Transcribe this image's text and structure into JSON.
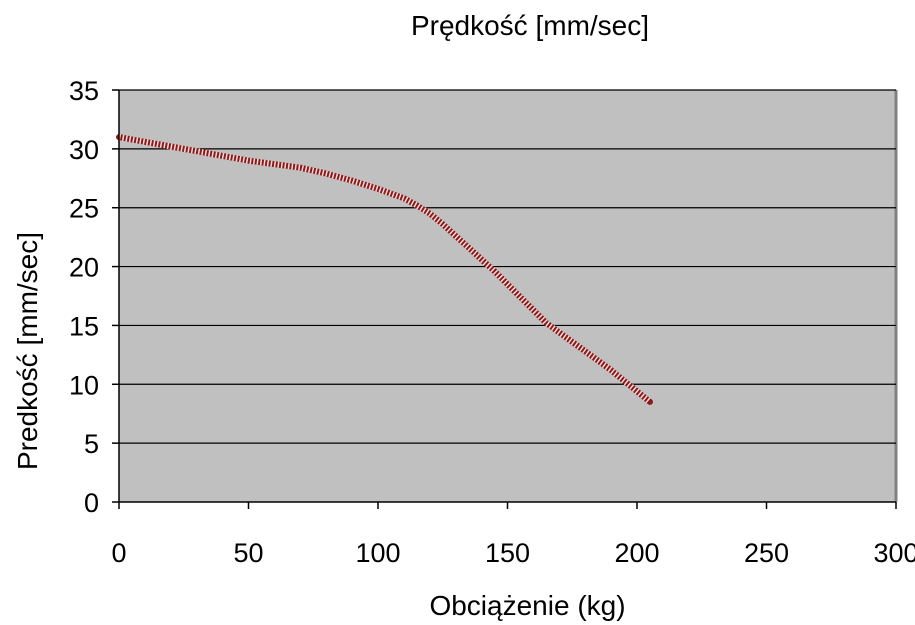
{
  "chart_data": {
    "type": "line",
    "title": "Prędkość [mm/sec]",
    "xlabel": "Obciążenie (kg)",
    "ylabel": "Predkość [mm/sec]",
    "xlim": [
      0,
      300
    ],
    "ylim": [
      0,
      35
    ],
    "xticks": [
      0,
      50,
      100,
      150,
      200,
      250,
      300
    ],
    "yticks": [
      0,
      5,
      10,
      15,
      20,
      25,
      30,
      35
    ],
    "grid": "horizontal",
    "legend": "none",
    "plot_background": "#c0c0c0",
    "series": [
      {
        "color": "#8b1a1a",
        "x": [
          0,
          10,
          20,
          30,
          40,
          50,
          60,
          70,
          80,
          90,
          100,
          110,
          115,
          120,
          125,
          130,
          135,
          140,
          145,
          150,
          155,
          160,
          165,
          170,
          175,
          180,
          185,
          190,
          195,
          200,
          205
        ],
        "y": [
          31,
          30.6,
          30.2,
          29.8,
          29.4,
          29.0,
          28.7,
          28.4,
          27.9,
          27.3,
          26.6,
          25.8,
          25.2,
          24.5,
          23.6,
          22.6,
          21.6,
          20.6,
          19.6,
          18.5,
          17.4,
          16.3,
          15.2,
          14.4,
          13.6,
          12.8,
          12.0,
          11.2,
          10.3,
          9.4,
          8.5
        ]
      }
    ]
  }
}
